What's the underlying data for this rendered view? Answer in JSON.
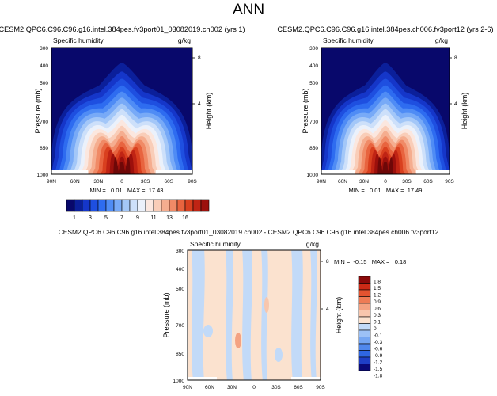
{
  "page_title": "ANN",
  "colors": {
    "blues": [
      "#08086b",
      "#0b1f9a",
      "#1536c9",
      "#1e4fe0",
      "#2e6cf0",
      "#4f8cf5",
      "#78aaf7",
      "#a3c7f8",
      "#cde0fa",
      "#ebf1fb"
    ],
    "reds": [
      "#fbe7df",
      "#f9cdb8",
      "#f5ad8f",
      "#f08a66",
      "#e8643f",
      "#d9401f",
      "#c02414",
      "#9c100c",
      "#6e0808"
    ],
    "diff": [
      "#0a0a78",
      "#1f3fc6",
      "#2f66e2",
      "#5088ec",
      "#75a6f2",
      "#9cc1f6",
      "#c2daf8",
      "#fbe2cf",
      "#f8c6ad",
      "#f4a282",
      "#ee7b55",
      "#e35330",
      "#cc2a16",
      "#8b0a0a"
    ]
  },
  "chart_data": [
    {
      "type": "heatmap",
      "title": "CESM2.QPC6.C96.C96.g16.intel.384pes.fv3port01_03082019.ch002 (yrs 1)",
      "field": "Specific humidity",
      "units": "g/kg",
      "ylabel": "Pressure (mb)",
      "ylabel_right": "Height (km)",
      "x_ticks": [
        "90N",
        "60N",
        "30N",
        "0",
        "30S",
        "60S",
        "90S"
      ],
      "y_ticks": [
        "300",
        "400",
        "500",
        "700",
        "850",
        "1000"
      ],
      "height_ticks": [
        "8",
        "4"
      ],
      "min": 0.01,
      "max": 17.43,
      "stats": "MIN =   0.01   MAX =  17.43",
      "ylim": [
        1000,
        300
      ],
      "contour_levels": [
        1,
        2,
        3,
        4,
        5,
        6,
        7,
        8,
        9,
        10,
        11,
        12,
        13,
        14,
        15,
        16
      ]
    },
    {
      "type": "heatmap",
      "title": "CESM2.QPC6.C96.C96.g16.intel.384pes.ch006.fv3port12 (yrs 2-6)",
      "field": "Specific humidity",
      "units": "g/kg",
      "ylabel": "Pressure (mb)",
      "ylabel_right": "Height (km)",
      "x_ticks": [
        "90N",
        "60N",
        "30N",
        "0",
        "30S",
        "60S",
        "90S"
      ],
      "y_ticks": [
        "300",
        "400",
        "500",
        "700",
        "850",
        "1000"
      ],
      "height_ticks": [
        "8",
        "4"
      ],
      "min": 0.01,
      "max": 17.49,
      "stats": "MIN =   0.01   MAX =  17.49",
      "ylim": [
        1000,
        300
      ],
      "contour_levels": [
        1,
        2,
        3,
        4,
        5,
        6,
        7,
        8,
        9,
        10,
        11,
        12,
        13,
        14,
        15,
        16
      ]
    },
    {
      "type": "heatmap",
      "title": "CESM2.QPC6.C96.C96.g16.intel.384pes.fv3port01_03082019.ch002 - CESM2.QPC6.C96.C96.g16.intel.384pes.ch006.fv3port12",
      "field": "Specific humidity",
      "units": "g/kg",
      "ylabel": "Pressure (mb)",
      "ylabel_right": "Height (km)",
      "x_ticks": [
        "90N",
        "60N",
        "30N",
        "0",
        "30S",
        "60S",
        "90S"
      ],
      "y_ticks": [
        "300",
        "400",
        "500",
        "700",
        "850",
        "1000"
      ],
      "height_ticks": [
        "8",
        "4"
      ],
      "min": -0.15,
      "max": 0.18,
      "stats": "MIN =  -0.15   MAX =   0.18",
      "ylim": [
        1000,
        300
      ],
      "contour_levels": [
        -1.8,
        -1.5,
        -1.2,
        -0.9,
        -0.6,
        -0.3,
        -0.1,
        0,
        0.1,
        0.3,
        0.6,
        0.9,
        1.2,
        1.5,
        1.8
      ]
    }
  ],
  "colorbar_top": {
    "labels": [
      "1",
      "3",
      "5",
      "7",
      "9",
      "11",
      "13",
      "16"
    ]
  },
  "colorbar_diff": {
    "labels": [
      "1.8",
      "1.5",
      "1.2",
      "0.9",
      "0.6",
      "0.3",
      "0.1",
      "0",
      "-0.1",
      "-0.3",
      "-0.6",
      "-0.9",
      "-1.2",
      "-1.5",
      "-1.8"
    ]
  }
}
